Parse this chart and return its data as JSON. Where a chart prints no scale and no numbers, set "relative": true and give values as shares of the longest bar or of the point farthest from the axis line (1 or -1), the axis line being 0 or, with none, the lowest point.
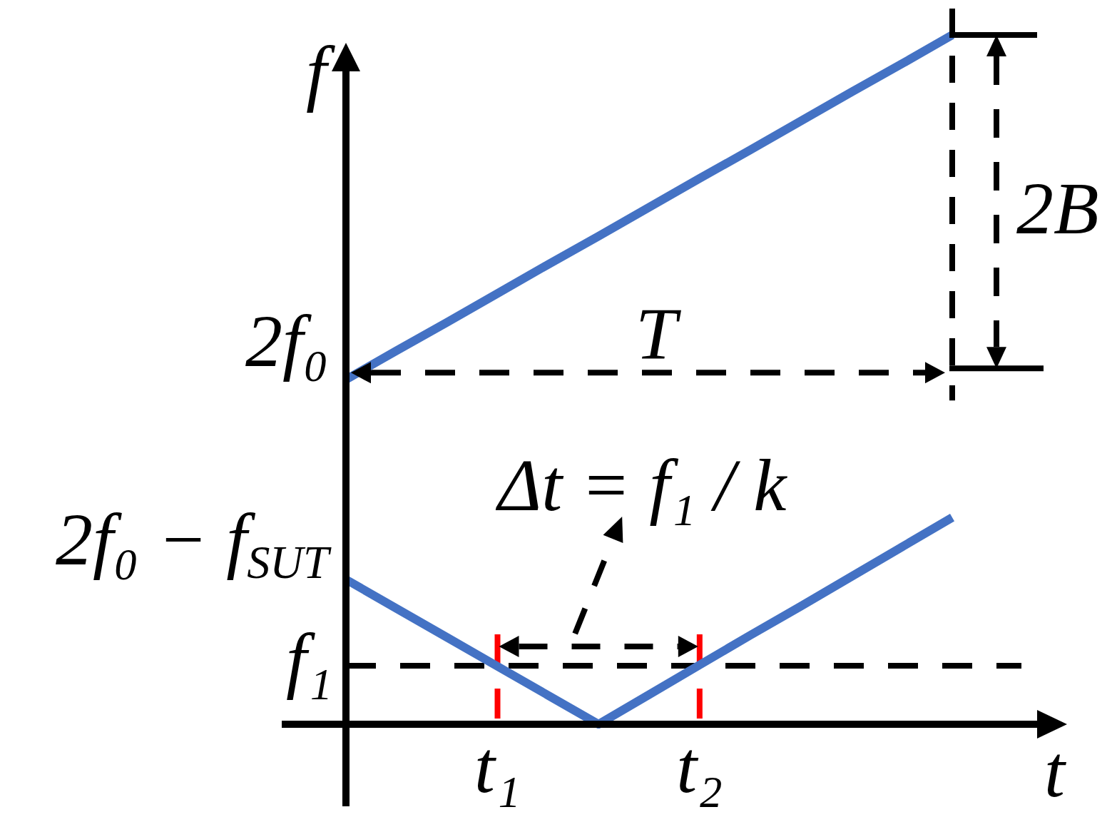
{
  "chart_data": {
    "type": "line",
    "relative": true,
    "xlabel": "t",
    "ylabel": "f",
    "categories": [
      null,
      null,
      null,
      "t₁",
      null,
      null,
      null,
      "t₂",
      null,
      null,
      null,
      null,
      null
    ],
    "series": [
      {
        "color": "#4472c4",
        "values": [
          0.5,
          0.542,
          0.583,
          0.625,
          0.667,
          0.708,
          0.75,
          0.792,
          0.833,
          0.875,
          0.917,
          0.958,
          1
        ]
      },
      {
        "color": "#4472c4",
        "values": [
          0.21,
          0.168,
          0.126,
          0.084,
          0.042,
          0,
          0.043,
          0.086,
          0.129,
          0.171,
          0.214,
          0.257,
          0.3
        ]
      }
    ],
    "ref_lines": [
      {
        "axis": "y",
        "value": 0.51,
        "label": "2f₀",
        "color": "#000000",
        "line_style": "dashed"
      },
      {
        "axis": "y",
        "value": 0.085,
        "label": "f₁",
        "color": "#000000",
        "line_style": "dashed"
      },
      {
        "axis": "x",
        "value": "t₁",
        "color": "#ff0000",
        "line_style": "dashed"
      },
      {
        "axis": "x",
        "value": "t₂",
        "color": "#ff0000",
        "line_style": "dashed"
      }
    ],
    "annotations": [
      "T",
      "2B",
      "Δt = f₁ / k",
      "2f₀ − f$_{SUT}$"
    ]
  }
}
